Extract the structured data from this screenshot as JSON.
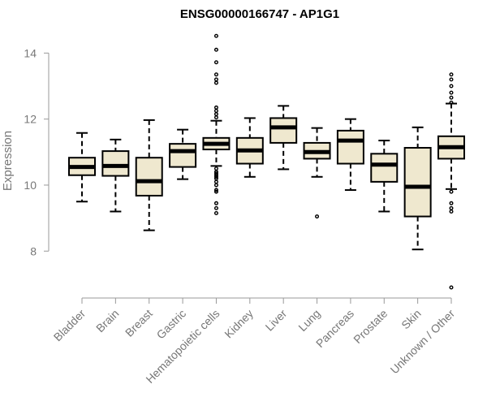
{
  "chart_data": {
    "type": "boxplot",
    "title": "ENSG00000166747 - AP1G1",
    "ylabel": "Expression",
    "xlabel": "",
    "ylim": [
      6.85,
      14.55
    ],
    "yticks": [
      8,
      10,
      12,
      14
    ],
    "box_color": "#efe8cf",
    "categories": [
      "Bladder",
      "Brain",
      "Breast",
      "Gastric",
      "Hematopoietic cells",
      "Kidney",
      "Liver",
      "Lung",
      "Pancreas",
      "Prostate",
      "Skin",
      "Unknown / Other"
    ],
    "boxes": [
      {
        "whisker_low": 9.5,
        "q1": 10.3,
        "median": 10.55,
        "q3": 10.83,
        "whisker_high": 11.58,
        "outliers": []
      },
      {
        "whisker_low": 9.2,
        "q1": 10.28,
        "median": 10.58,
        "q3": 11.03,
        "whisker_high": 11.38,
        "outliers": []
      },
      {
        "whisker_low": 8.63,
        "q1": 9.68,
        "median": 10.12,
        "q3": 10.83,
        "whisker_high": 11.97,
        "outliers": []
      },
      {
        "whisker_low": 10.18,
        "q1": 10.55,
        "median": 11.03,
        "q3": 11.25,
        "whisker_high": 11.68,
        "outliers": []
      },
      {
        "whisker_low": 10.58,
        "q1": 11.08,
        "median": 11.25,
        "q3": 11.43,
        "whisker_high": 11.95,
        "outliers": [
          14.52,
          14.1,
          13.72,
          13.35,
          13.2,
          13.1,
          12.35,
          12.25,
          12.15,
          12.05,
          10.5,
          10.4,
          10.35,
          10.3,
          10.25,
          10.2,
          10.1,
          10.0,
          9.85,
          9.8,
          9.45,
          9.3,
          9.15
        ]
      },
      {
        "whisker_low": 10.25,
        "q1": 10.65,
        "median": 11.05,
        "q3": 11.43,
        "whisker_high": 12.03,
        "outliers": []
      },
      {
        "whisker_low": 10.48,
        "q1": 11.28,
        "median": 11.75,
        "q3": 12.03,
        "whisker_high": 12.4,
        "outliers": []
      },
      {
        "whisker_low": 10.25,
        "q1": 10.8,
        "median": 11.0,
        "q3": 11.28,
        "whisker_high": 11.73,
        "outliers": [
          9.05
        ]
      },
      {
        "whisker_low": 9.85,
        "q1": 10.65,
        "median": 11.35,
        "q3": 11.65,
        "whisker_high": 12.0,
        "outliers": []
      },
      {
        "whisker_low": 9.2,
        "q1": 10.1,
        "median": 10.62,
        "q3": 10.95,
        "whisker_high": 11.35,
        "outliers": []
      },
      {
        "whisker_low": 8.05,
        "q1": 9.05,
        "median": 9.95,
        "q3": 11.13,
        "whisker_high": 11.75,
        "outliers": []
      },
      {
        "whisker_low": 9.88,
        "q1": 10.8,
        "median": 11.15,
        "q3": 11.48,
        "whisker_high": 12.47,
        "outliers": [
          13.35,
          13.2,
          13.0,
          12.8,
          12.65,
          12.5,
          9.8,
          9.45,
          9.3,
          9.2,
          6.9
        ]
      }
    ]
  }
}
